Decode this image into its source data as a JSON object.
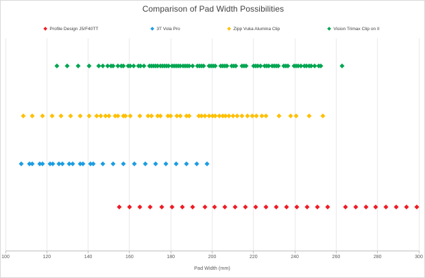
{
  "chart_data": {
    "type": "scatter",
    "title": "Comparison of Pad Width Possibilities",
    "xlabel": "Pad Width (mm)",
    "ylabel": "",
    "xlim": [
      100,
      300
    ],
    "x_ticks": [
      100,
      120,
      140,
      160,
      180,
      200,
      220,
      240,
      260,
      280,
      300
    ],
    "grid": "vertical-only",
    "legend_position": "top",
    "marker": "diamond",
    "series": [
      {
        "name": "Profile Design J5/F40TT",
        "color": "#ef1c24",
        "row": 1,
        "x_values": [
          155,
          160,
          165,
          170,
          175.5,
          180.5,
          185.5,
          190.5,
          196.5,
          201,
          206,
          211,
          216,
          221,
          226,
          231,
          236,
          241,
          246,
          251,
          256,
          264.5,
          269.5,
          274.5,
          279,
          284,
          289,
          294,
          299
        ]
      },
      {
        "name": "3T Vola Pro",
        "color": "#1b9de2",
        "row": 2,
        "x_values": [
          107.5,
          111.5,
          113,
          116.5,
          118,
          121.5,
          123,
          126,
          127.5,
          131,
          132.5,
          136,
          137.5,
          141,
          142.5,
          147,
          152,
          157,
          162.5,
          167.5,
          172.5,
          177.5,
          182.5,
          187.5,
          192.5,
          197.5
        ]
      },
      {
        "name": "Zipp Vuka Alumina Clip",
        "color": "#ffc000",
        "row": 3,
        "x_values": [
          108.5,
          113,
          118,
          122.5,
          127,
          131.5,
          136,
          140.5,
          144,
          146,
          148.5,
          150,
          153,
          154.5,
          157,
          158,
          160.5,
          165,
          169,
          170.5,
          173.5,
          175,
          178.5,
          180,
          183,
          184.5,
          187.5,
          189,
          193.5,
          195,
          196.5,
          198.5,
          200,
          201.5,
          203.5,
          205,
          206.5,
          208,
          210,
          212,
          214.5,
          217,
          219.5,
          221.5,
          224,
          226,
          232.5,
          238,
          240.5,
          247,
          253.5
        ]
      },
      {
        "name": "Vision Trimax Clip on II",
        "color": "#00a651",
        "row": 4,
        "x_values": [
          125,
          130,
          135,
          140.5,
          145,
          147,
          149.5,
          151,
          152,
          154.5,
          156,
          157,
          159.5,
          160.5,
          162,
          164.5,
          165.5,
          167,
          169.5,
          170.5,
          171.5,
          172.5,
          173.5,
          175,
          176,
          177,
          178,
          179,
          180.5,
          181.5,
          182.5,
          183.5,
          184.5,
          186,
          187,
          188,
          189,
          190.5,
          193,
          194,
          195,
          196,
          198.5,
          199.5,
          200.5,
          201.5,
          204,
          205,
          206,
          207,
          209.5,
          210.5,
          211.5,
          214.5,
          215.5,
          216.5,
          220,
          221,
          222,
          223.5,
          225.5,
          226.5,
          227.5,
          229,
          230,
          231,
          232,
          234.5,
          235.5,
          236.5,
          239.5,
          240.5,
          241.5,
          243,
          244.5,
          245.5,
          247,
          248,
          249.5,
          251.5,
          252.5,
          263
        ]
      }
    ]
  }
}
